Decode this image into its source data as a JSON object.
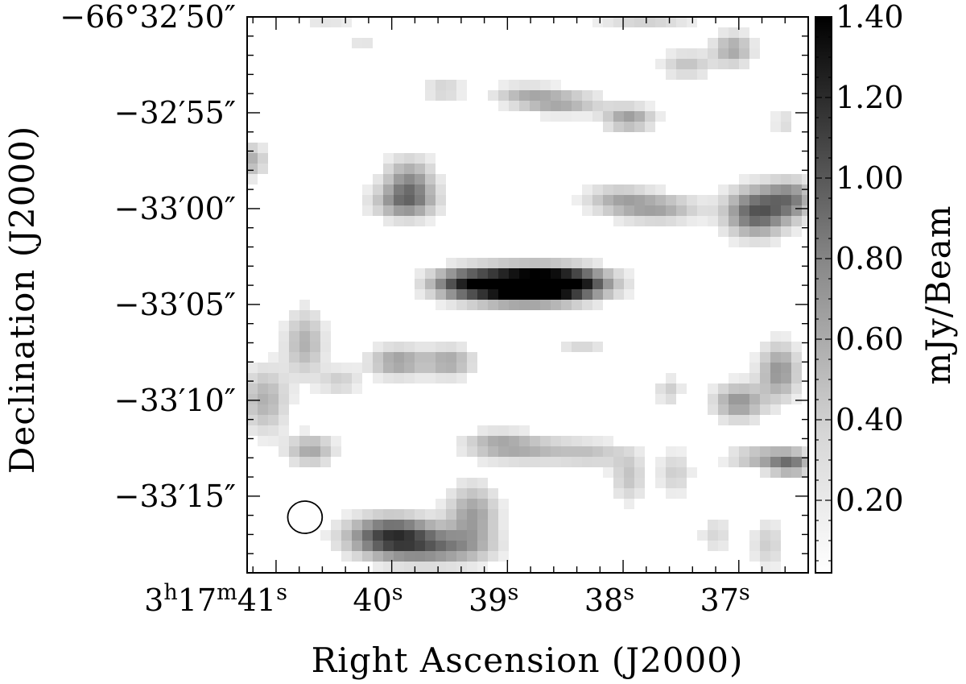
{
  "chart_data": {
    "type": "heatmap",
    "title": "",
    "xlabel": "Right Ascension (J2000)",
    "ylabel": "Declination (J2000)",
    "colorbar_label": "mJy/Beam",
    "colormap": "grayscale (white = low, black = high)",
    "x_ticks": [
      {
        "label": "3h17m41s",
        "parts": [
          [
            "3",
            ""
          ],
          [
            "h",
            "sup"
          ],
          [
            "17",
            ""
          ],
          [
            "m",
            "sup"
          ],
          [
            "41",
            ""
          ],
          [
            "s",
            "sup"
          ]
        ],
        "value": 41
      },
      {
        "label": "40s",
        "parts": [
          [
            "40",
            ""
          ],
          [
            "s",
            "sup"
          ]
        ],
        "value": 40
      },
      {
        "label": "39s",
        "parts": [
          [
            "39",
            ""
          ],
          [
            "s",
            "sup"
          ]
        ],
        "value": 39
      },
      {
        "label": "38s",
        "parts": [
          [
            "38",
            ""
          ],
          [
            "s",
            "sup"
          ]
        ],
        "value": 38
      },
      {
        "label": "37s",
        "parts": [
          [
            "37",
            ""
          ],
          [
            "s",
            "sup"
          ]
        ],
        "value": 37
      }
    ],
    "x_range_seconds": [
      41.25,
      36.4
    ],
    "y_ticks": [
      {
        "label": "−66°32′50″",
        "value": -10
      },
      {
        "label": "−32′55″",
        "value": -5
      },
      {
        "label": "−33′00″",
        "value": 0
      },
      {
        "label": "−33′05″",
        "value": 5
      },
      {
        "label": "−33′10″",
        "value": 10
      },
      {
        "label": "−33′15″",
        "value": 15
      }
    ],
    "y_range_arcsec": [
      -10,
      19
    ],
    "colorbar_ticks": [
      "1.40",
      "1.20",
      "1.00",
      "0.80",
      "0.60",
      "0.40",
      "0.20"
    ],
    "colorbar_values": [
      1.4,
      1.2,
      1.0,
      0.8,
      0.6,
      0.4,
      0.2
    ],
    "colorbar_range": [
      0.02,
      1.4
    ],
    "emission_blobs": [
      {
        "ra": 38.75,
        "dec": 4.0,
        "peak": 1.38,
        "sx": 0.28,
        "sy": 0.55
      },
      {
        "ra": 39.05,
        "dec": 4.0,
        "peak": 1.05,
        "sx": 0.3,
        "sy": 0.6
      },
      {
        "ra": 38.45,
        "dec": 3.9,
        "peak": 0.9,
        "sx": 0.25,
        "sy": 0.55
      },
      {
        "ra": 39.4,
        "dec": 3.9,
        "peak": 0.55,
        "sx": 0.2,
        "sy": 0.5
      },
      {
        "ra": 40.0,
        "dec": 17.1,
        "peak": 1.0,
        "sx": 0.26,
        "sy": 0.7
      },
      {
        "ra": 39.6,
        "dec": 17.7,
        "peak": 0.55,
        "sx": 0.3,
        "sy": 0.6
      },
      {
        "ra": 39.3,
        "dec": 16.0,
        "peak": 0.5,
        "sx": 0.15,
        "sy": 1.1
      },
      {
        "ra": 36.85,
        "dec": 0.2,
        "peak": 0.85,
        "sx": 0.18,
        "sy": 0.85
      },
      {
        "ra": 36.55,
        "dec": -0.5,
        "peak": 0.6,
        "sx": 0.15,
        "sy": 0.7
      },
      {
        "ra": 37.7,
        "dec": 0.0,
        "peak": 0.45,
        "sx": 0.25,
        "sy": 0.5
      },
      {
        "ra": 38.05,
        "dec": -0.5,
        "peak": 0.35,
        "sx": 0.2,
        "sy": 0.5
      },
      {
        "ra": 39.85,
        "dec": -1.2,
        "peak": 0.6,
        "sx": 0.15,
        "sy": 0.95
      },
      {
        "ra": 38.55,
        "dec": -5.5,
        "peak": 0.45,
        "sx": 0.25,
        "sy": 0.4
      },
      {
        "ra": 37.95,
        "dec": -4.7,
        "peak": 0.5,
        "sx": 0.15,
        "sy": 0.45
      },
      {
        "ra": 38.85,
        "dec": -6.0,
        "peak": 0.3,
        "sx": 0.2,
        "sy": 0.35
      },
      {
        "ra": 39.95,
        "dec": 8.0,
        "peak": 0.5,
        "sx": 0.17,
        "sy": 0.55
      },
      {
        "ra": 39.5,
        "dec": 8.0,
        "peak": 0.45,
        "sx": 0.15,
        "sy": 0.55
      },
      {
        "ra": 36.65,
        "dec": 8.5,
        "peak": 0.55,
        "sx": 0.12,
        "sy": 1.0
      },
      {
        "ra": 37.0,
        "dec": 10.1,
        "peak": 0.55,
        "sx": 0.15,
        "sy": 0.65
      },
      {
        "ra": 36.55,
        "dec": 13.3,
        "peak": 0.6,
        "sx": 0.13,
        "sy": 0.45
      },
      {
        "ra": 36.8,
        "dec": 13.0,
        "peak": 0.4,
        "sx": 0.2,
        "sy": 0.4
      },
      {
        "ra": 40.75,
        "dec": 7.0,
        "peak": 0.4,
        "sx": 0.12,
        "sy": 1.2
      },
      {
        "ra": 41.1,
        "dec": 10.0,
        "peak": 0.4,
        "sx": 0.14,
        "sy": 1.2
      },
      {
        "ra": 40.7,
        "dec": 12.6,
        "peak": 0.45,
        "sx": 0.14,
        "sy": 0.55
      },
      {
        "ra": 40.45,
        "dec": 9.0,
        "peak": 0.25,
        "sx": 0.12,
        "sy": 0.5
      },
      {
        "ra": 38.8,
        "dec": 12.6,
        "peak": 0.35,
        "sx": 0.3,
        "sy": 0.5
      },
      {
        "ra": 39.1,
        "dec": 12.2,
        "peak": 0.3,
        "sx": 0.2,
        "sy": 0.45
      },
      {
        "ra": 38.25,
        "dec": 12.8,
        "peak": 0.25,
        "sx": 0.2,
        "sy": 0.45
      },
      {
        "ra": 37.95,
        "dec": 14.0,
        "peak": 0.3,
        "sx": 0.1,
        "sy": 0.9
      },
      {
        "ra": 37.55,
        "dec": 13.8,
        "peak": 0.25,
        "sx": 0.1,
        "sy": 0.8
      },
      {
        "ra": 39.9,
        "dec": -0.3,
        "peak": 0.4,
        "sx": 0.2,
        "sy": 0.55
      },
      {
        "ra": 37.05,
        "dec": -8.3,
        "peak": 0.45,
        "sx": 0.12,
        "sy": 0.6
      },
      {
        "ra": 37.45,
        "dec": -7.5,
        "peak": 0.3,
        "sx": 0.15,
        "sy": 0.5
      },
      {
        "ra": 39.55,
        "dec": -6.2,
        "peak": 0.25,
        "sx": 0.12,
        "sy": 0.4
      },
      {
        "ra": 41.2,
        "dec": -2.5,
        "peak": 0.4,
        "sx": 0.08,
        "sy": 0.6
      },
      {
        "ra": 40.25,
        "dec": -8.5,
        "peak": 0.15,
        "sx": 0.1,
        "sy": 0.35
      },
      {
        "ra": 36.6,
        "dec": -4.5,
        "peak": 0.2,
        "sx": 0.08,
        "sy": 0.4
      },
      {
        "ra": 36.75,
        "dec": 17.5,
        "peak": 0.25,
        "sx": 0.1,
        "sy": 0.9
      },
      {
        "ra": 37.2,
        "dec": 17.0,
        "peak": 0.2,
        "sx": 0.1,
        "sy": 0.7
      },
      {
        "ra": 38.35,
        "dec": 7.2,
        "peak": 0.2,
        "sx": 0.15,
        "sy": 0.35
      },
      {
        "ra": 37.6,
        "dec": 9.5,
        "peak": 0.25,
        "sx": 0.08,
        "sy": 0.5
      },
      {
        "ra": 37.8,
        "dec": -10.0,
        "peak": 0.3,
        "sx": 0.3,
        "sy": 0.35
      },
      {
        "ra": 40.55,
        "dec": -10.0,
        "peak": 0.2,
        "sx": 0.2,
        "sy": 0.3
      }
    ],
    "beam": {
      "ra": 40.75,
      "dec": 16.1,
      "major_arcsec": 1.8,
      "minor_arcsec": 1.5
    },
    "grid": false
  }
}
